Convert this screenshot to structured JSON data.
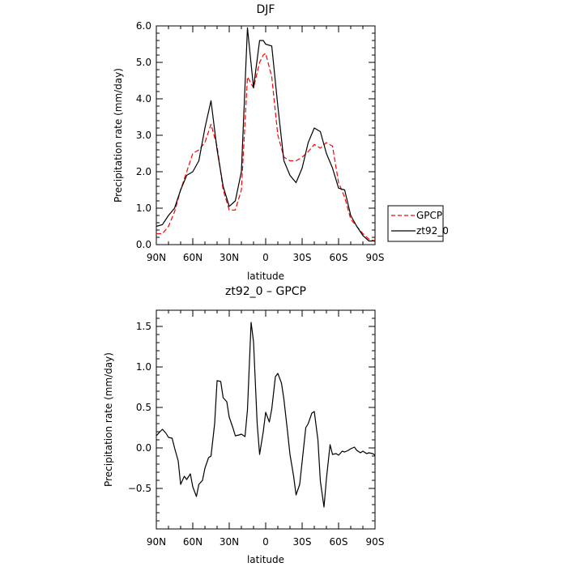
{
  "chart_data": [
    {
      "type": "line",
      "title": "DJF",
      "xlabel": "latitude",
      "ylabel": "Precipitation rate  (mm/day)",
      "x_tick_labels": [
        "90N",
        "60N",
        "30N",
        "0",
        "30S",
        "60S",
        "90S"
      ],
      "x_tick_values": [
        90,
        60,
        30,
        0,
        -30,
        -60,
        -90
      ],
      "xlim": [
        90,
        -90
      ],
      "y_tick_labels": [
        "0.0",
        "1.0",
        "2.0",
        "3.0",
        "4.0",
        "5.0",
        "6.0"
      ],
      "ylim": [
        0,
        6
      ],
      "legend_position": "right",
      "x": [
        90,
        85,
        80,
        75,
        70,
        65,
        60,
        55,
        50,
        45,
        40,
        35,
        30,
        25,
        20,
        15,
        10,
        5,
        2,
        0,
        -5,
        -10,
        -15,
        -20,
        -25,
        -30,
        -35,
        -40,
        -45,
        -50,
        -55,
        -60,
        -65,
        -70,
        -75,
        -80,
        -85,
        -90
      ],
      "series": [
        {
          "name": "GPCP",
          "color": "#ff0000",
          "style": "dashed",
          "values": [
            0.3,
            0.3,
            0.5,
            0.9,
            1.5,
            2.0,
            2.5,
            2.6,
            2.8,
            3.3,
            2.7,
            1.5,
            0.95,
            0.95,
            1.5,
            4.6,
            4.3,
            5.0,
            5.2,
            5.25,
            4.6,
            3.0,
            2.4,
            2.3,
            2.3,
            2.4,
            2.55,
            2.75,
            2.65,
            2.8,
            2.7,
            1.7,
            1.3,
            0.7,
            0.5,
            0.3,
            0.15,
            0.1
          ]
        },
        {
          "name": "zt92_0",
          "color": "#000000",
          "style": "solid",
          "values": [
            0.5,
            0.55,
            0.8,
            1.0,
            1.5,
            1.9,
            2.0,
            2.3,
            3.2,
            3.95,
            2.6,
            1.6,
            1.05,
            1.2,
            2.0,
            5.95,
            4.3,
            5.6,
            5.6,
            5.5,
            5.45,
            3.8,
            2.3,
            1.9,
            1.7,
            2.1,
            2.8,
            3.2,
            3.1,
            2.5,
            2.1,
            1.55,
            1.5,
            0.8,
            0.5,
            0.25,
            0.1,
            0.1
          ]
        }
      ]
    },
    {
      "type": "line",
      "title": "zt92_0 – GPCP",
      "xlabel": "latitude",
      "ylabel": "Precipitation rate  (mm/day)",
      "x_tick_labels": [
        "90N",
        "60N",
        "30N",
        "0",
        "30S",
        "60S",
        "90S"
      ],
      "x_tick_values": [
        90,
        60,
        30,
        0,
        -30,
        -60,
        -90
      ],
      "xlim": [
        90,
        -90
      ],
      "y_tick_labels": [
        "−0.5",
        "0.0",
        "0.5",
        "1.0",
        "1.5"
      ],
      "y_tick_values": [
        -0.5,
        0,
        0.5,
        1.0,
        1.5
      ],
      "ylim": [
        -1.0,
        1.7
      ],
      "x": [
        90,
        87,
        85,
        82,
        80,
        77,
        75,
        72,
        70,
        67,
        65,
        62,
        60,
        57,
        55,
        52,
        50,
        47,
        45,
        42,
        40,
        37,
        35,
        32,
        30,
        27,
        25,
        22,
        20,
        17,
        15,
        12,
        10,
        7,
        5,
        2,
        0,
        -3,
        -5,
        -8,
        -10,
        -13,
        -15,
        -18,
        -20,
        -23,
        -25,
        -28,
        -30,
        -33,
        -35,
        -38,
        -40,
        -43,
        -45,
        -48,
        -50,
        -53,
        -55,
        -58,
        -60,
        -63,
        -65,
        -68,
        -70,
        -73,
        -75,
        -78,
        -80,
        -83,
        -85,
        -88,
        -90
      ],
      "series": [
        {
          "name": "",
          "color": "#000000",
          "style": "solid",
          "values": [
            0.15,
            0.2,
            0.23,
            0.18,
            0.13,
            0.12,
            0.0,
            -0.16,
            -0.45,
            -0.35,
            -0.39,
            -0.32,
            -0.48,
            -0.6,
            -0.45,
            -0.4,
            -0.25,
            -0.12,
            -0.1,
            0.3,
            0.83,
            0.82,
            0.62,
            0.57,
            0.38,
            0.25,
            0.15,
            0.16,
            0.17,
            0.14,
            0.47,
            1.55,
            1.31,
            0.3,
            -0.08,
            0.2,
            0.44,
            0.32,
            0.48,
            0.88,
            0.92,
            0.8,
            0.6,
            0.2,
            -0.08,
            -0.35,
            -0.58,
            -0.45,
            -0.17,
            0.25,
            0.3,
            0.43,
            0.45,
            0.1,
            -0.41,
            -0.73,
            -0.38,
            0.04,
            -0.08,
            -0.07,
            -0.09,
            -0.04,
            -0.05,
            -0.03,
            -0.01,
            0.01,
            -0.03,
            -0.06,
            -0.04,
            -0.07,
            -0.06,
            -0.07,
            -0.09
          ]
        }
      ]
    }
  ]
}
